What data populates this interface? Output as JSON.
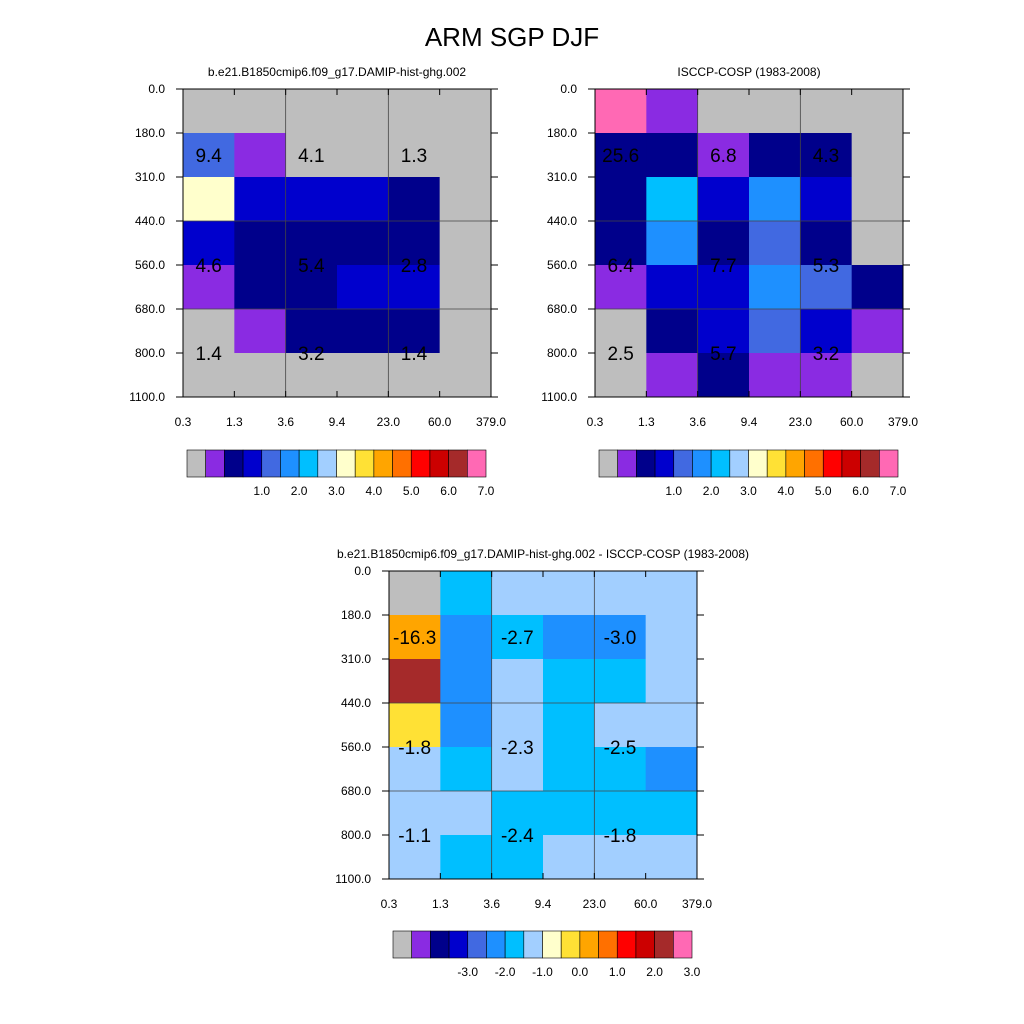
{
  "title": "ARM SGP DJF",
  "chart_data": [
    {
      "type": "heatmap",
      "title": "b.e21.B1850cmip6.f09_g17.DAMIP-hist-ghg.002",
      "x_ticks": [
        "0.3",
        "1.3",
        "3.6",
        "9.4",
        "23.0",
        "60.0",
        "379.0"
      ],
      "y_ticks": [
        "0.0",
        "180.0",
        "310.0",
        "440.0",
        "560.0",
        "680.0",
        "800.0",
        "1100.0"
      ],
      "cells": [
        [
          "#BEBEBE",
          "#BEBEBE",
          "#BEBEBE",
          "#BEBEBE",
          "#BEBEBE",
          "#BEBEBE"
        ],
        [
          "#4169E1",
          "#8A2BE2",
          "#BEBEBE",
          "#BEBEBE",
          "#BEBEBE",
          "#BEBEBE"
        ],
        [
          "#FFFFCC",
          "#0000CD",
          "#0000CD",
          "#0000CD",
          "#00008B",
          "#BEBEBE"
        ],
        [
          "#0000CD",
          "#00008B",
          "#00008B",
          "#00008B",
          "#00008B",
          "#BEBEBE"
        ],
        [
          "#8A2BE2",
          "#00008B",
          "#00008B",
          "#0000CD",
          "#0000CD",
          "#BEBEBE"
        ],
        [
          "#BEBEBE",
          "#8A2BE2",
          "#00008B",
          "#00008B",
          "#00008B",
          "#BEBEBE"
        ],
        [
          "#BEBEBE",
          "#BEBEBE",
          "#BEBEBE",
          "#BEBEBE",
          "#BEBEBE",
          "#BEBEBE"
        ]
      ],
      "annotations": [
        {
          "text": "9.4",
          "col": 0.5,
          "row": 1.5
        },
        {
          "text": "4.1",
          "col": 2.5,
          "row": 1.5
        },
        {
          "text": "1.3",
          "col": 4.5,
          "row": 1.5
        },
        {
          "text": "4.6",
          "col": 0.5,
          "row": 4.0
        },
        {
          "text": "5.4",
          "col": 2.5,
          "row": 4.0
        },
        {
          "text": "2.8",
          "col": 4.5,
          "row": 4.0
        },
        {
          "text": "1.4",
          "col": 0.5,
          "row": 6.0
        },
        {
          "text": "3.2",
          "col": 2.5,
          "row": 6.0
        },
        {
          "text": "1.4",
          "col": 4.5,
          "row": 6.0
        }
      ],
      "colorbar": {
        "colors": [
          "#BEBEBE",
          "#8A2BE2",
          "#00008B",
          "#0000CD",
          "#4169E1",
          "#1E90FF",
          "#00BFFF",
          "#A2CFFF",
          "#FFFFCC",
          "#FFE135",
          "#FFA500",
          "#FF7000",
          "#FF0000",
          "#CC0000",
          "#A52A2A",
          "#FF69B4"
        ],
        "labels": [
          "1.0",
          "2.0",
          "3.0",
          "4.0",
          "5.0",
          "6.0",
          "7.0"
        ]
      }
    },
    {
      "type": "heatmap",
      "title": "ISCCP-COSP (1983-2008)",
      "x_ticks": [
        "0.3",
        "1.3",
        "3.6",
        "9.4",
        "23.0",
        "60.0",
        "379.0"
      ],
      "y_ticks": [
        "0.0",
        "180.0",
        "310.0",
        "440.0",
        "560.0",
        "680.0",
        "800.0",
        "1100.0"
      ],
      "cells": [
        [
          "#FF69B4",
          "#8A2BE2",
          "#BEBEBE",
          "#BEBEBE",
          "#BEBEBE",
          "#BEBEBE"
        ],
        [
          "#00008B",
          "#00008B",
          "#8A2BE2",
          "#00008B",
          "#00008B",
          "#BEBEBE"
        ],
        [
          "#00008B",
          "#00BFFF",
          "#0000CD",
          "#1E90FF",
          "#0000CD",
          "#BEBEBE"
        ],
        [
          "#00008B",
          "#1E90FF",
          "#00008B",
          "#4169E1",
          "#00008B",
          "#BEBEBE"
        ],
        [
          "#8A2BE2",
          "#0000CD",
          "#0000CD",
          "#1E90FF",
          "#4169E1",
          "#00008B"
        ],
        [
          "#BEBEBE",
          "#00008B",
          "#0000CD",
          "#4169E1",
          "#0000CD",
          "#8A2BE2"
        ],
        [
          "#BEBEBE",
          "#8A2BE2",
          "#00008B",
          "#8A2BE2",
          "#8A2BE2",
          "#BEBEBE"
        ]
      ],
      "annotations": [
        {
          "text": "25.6",
          "col": 0.5,
          "row": 1.5
        },
        {
          "text": "6.8",
          "col": 2.5,
          "row": 1.5
        },
        {
          "text": "4.3",
          "col": 4.5,
          "row": 1.5
        },
        {
          "text": "6.4",
          "col": 0.5,
          "row": 4.0
        },
        {
          "text": "7.7",
          "col": 2.5,
          "row": 4.0
        },
        {
          "text": "5.3",
          "col": 4.5,
          "row": 4.0
        },
        {
          "text": "2.5",
          "col": 0.5,
          "row": 6.0
        },
        {
          "text": "5.7",
          "col": 2.5,
          "row": 6.0
        },
        {
          "text": "3.2",
          "col": 4.5,
          "row": 6.0
        }
      ],
      "colorbar": {
        "colors": [
          "#BEBEBE",
          "#8A2BE2",
          "#00008B",
          "#0000CD",
          "#4169E1",
          "#1E90FF",
          "#00BFFF",
          "#A2CFFF",
          "#FFFFCC",
          "#FFE135",
          "#FFA500",
          "#FF7000",
          "#FF0000",
          "#CC0000",
          "#A52A2A",
          "#FF69B4"
        ],
        "labels": [
          "1.0",
          "2.0",
          "3.0",
          "4.0",
          "5.0",
          "6.0",
          "7.0"
        ]
      }
    },
    {
      "type": "heatmap",
      "title": "b.e21.B1850cmip6.f09_g17.DAMIP-hist-ghg.002 - ISCCP-COSP (1983-2008)",
      "x_ticks": [
        "0.3",
        "1.3",
        "3.6",
        "9.4",
        "23.0",
        "60.0",
        "379.0"
      ],
      "y_ticks": [
        "0.0",
        "180.0",
        "310.0",
        "440.0",
        "560.0",
        "680.0",
        "800.0",
        "1100.0"
      ],
      "cells": [
        [
          "#BEBEBE",
          "#00BFFF",
          "#A2CFFF",
          "#A2CFFF",
          "#A2CFFF",
          "#A2CFFF"
        ],
        [
          "#FFA500",
          "#1E90FF",
          "#00BFFF",
          "#1E90FF",
          "#1E90FF",
          "#A2CFFF"
        ],
        [
          "#A52A2A",
          "#1E90FF",
          "#A2CFFF",
          "#00BFFF",
          "#00BFFF",
          "#A2CFFF"
        ],
        [
          "#FFE135",
          "#1E90FF",
          "#A2CFFF",
          "#00BFFF",
          "#A2CFFF",
          "#A2CFFF"
        ],
        [
          "#A2CFFF",
          "#00BFFF",
          "#A2CFFF",
          "#00BFFF",
          "#00BFFF",
          "#1E90FF"
        ],
        [
          "#A2CFFF",
          "#A2CFFF",
          "#00BFFF",
          "#00BFFF",
          "#00BFFF",
          "#00BFFF"
        ],
        [
          "#A2CFFF",
          "#00BFFF",
          "#00BFFF",
          "#A2CFFF",
          "#A2CFFF",
          "#A2CFFF"
        ]
      ],
      "annotations": [
        {
          "text": "-16.3",
          "col": 0.5,
          "row": 1.5
        },
        {
          "text": "-2.7",
          "col": 2.5,
          "row": 1.5
        },
        {
          "text": "-3.0",
          "col": 4.5,
          "row": 1.5
        },
        {
          "text": "-1.8",
          "col": 0.5,
          "row": 4.0
        },
        {
          "text": "-2.3",
          "col": 2.5,
          "row": 4.0
        },
        {
          "text": "-2.5",
          "col": 4.5,
          "row": 4.0
        },
        {
          "text": "-1.1",
          "col": 0.5,
          "row": 6.0
        },
        {
          "text": "-2.4",
          "col": 2.5,
          "row": 6.0
        },
        {
          "text": "-1.8",
          "col": 4.5,
          "row": 6.0
        }
      ],
      "colorbar": {
        "colors": [
          "#BEBEBE",
          "#8A2BE2",
          "#00008B",
          "#0000CD",
          "#4169E1",
          "#1E90FF",
          "#00BFFF",
          "#A2CFFF",
          "#FFFFCC",
          "#FFE135",
          "#FFA500",
          "#FF7000",
          "#FF0000",
          "#CC0000",
          "#A52A2A",
          "#FF69B4"
        ],
        "labels": [
          "-3.0",
          "-2.0",
          "-1.0",
          "0.0",
          "1.0",
          "2.0",
          "3.0"
        ]
      }
    }
  ]
}
